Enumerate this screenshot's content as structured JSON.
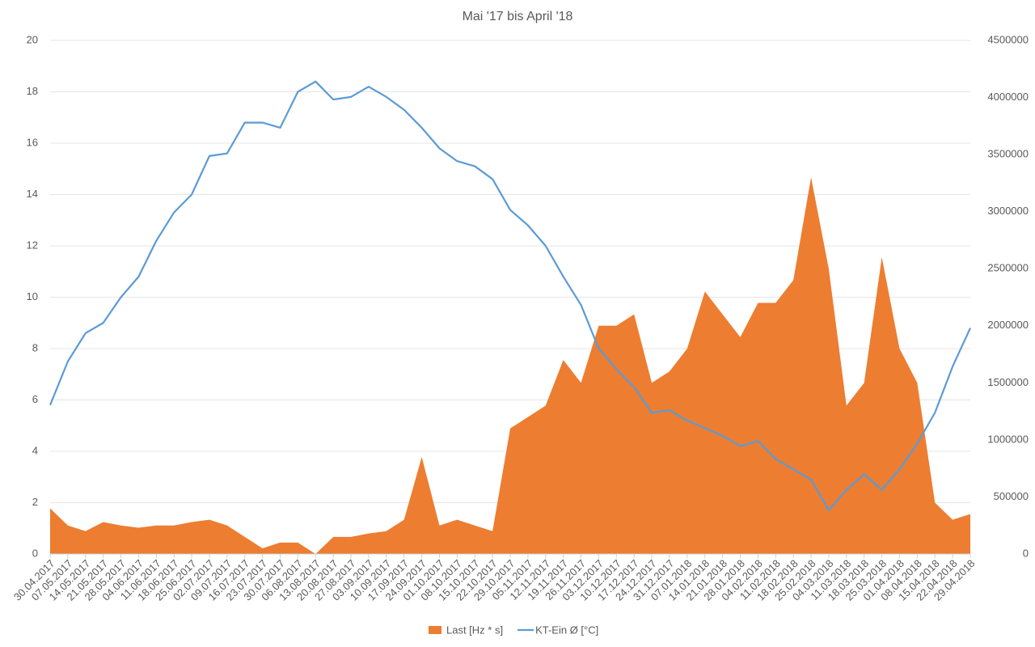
{
  "chart_data": {
    "type": "combo",
    "title": "Mai '17 bis April '18",
    "categories": [
      "30.04.2017",
      "07.05.2017",
      "14.05.2017",
      "21.05.2017",
      "28.05.2017",
      "04.06.2017",
      "11.06.2017",
      "18.06.2017",
      "25.06.2017",
      "02.07.2017",
      "09.07.2017",
      "16.07.2017",
      "23.07.2017",
      "30.07.2017",
      "06.08.2017",
      "13.08.2017",
      "20.08.2017",
      "27.08.2017",
      "03.09.2017",
      "10.09.2017",
      "17.09.2017",
      "24.09.2017",
      "01.10.2017",
      "08.10.2017",
      "15.10.2017",
      "22.10.2017",
      "29.10.2017",
      "05.11.2017",
      "12.11.2017",
      "19.11.2017",
      "26.11.2017",
      "03.12.2017",
      "10.12.2017",
      "17.12.2017",
      "24.12.2017",
      "31.12.2017",
      "07.01.2018",
      "14.01.2018",
      "21.01.2018",
      "28.01.2018",
      "04.02.2018",
      "11.02.2018",
      "18.02.2018",
      "25.02.2018",
      "04.03.2018",
      "11.03.2018",
      "18.03.2018",
      "25.03.2018",
      "01.04.2018",
      "08.04.2018",
      "15.04.2018",
      "22.04.2018",
      "29.04.2018"
    ],
    "series": [
      {
        "name": "Last [Hz * s]",
        "type": "area",
        "color": "#ed7d31",
        "axis": "y2",
        "values": [
          400000,
          250000,
          200000,
          280000,
          250000,
          230000,
          250000,
          250000,
          280000,
          300000,
          250000,
          150000,
          50000,
          100000,
          100000,
          0,
          150000,
          150000,
          180000,
          200000,
          300000,
          850000,
          250000,
          300000,
          250000,
          200000,
          1100000,
          1200000,
          1300000,
          1700000,
          1500000,
          2000000,
          2000000,
          2100000,
          1500000,
          1600000,
          1800000,
          2300000,
          2100000,
          1900000,
          2200000,
          2200000,
          2400000,
          3300000,
          2500000,
          1300000,
          1500000,
          2600000,
          1800000,
          1500000,
          450000,
          300000,
          350000
        ]
      },
      {
        "name": "KT-Ein Ø [°C]",
        "type": "line",
        "color": "#5b9bd5",
        "values": [
          5.8,
          7.5,
          8.6,
          9.0,
          10.0,
          10.8,
          12.2,
          13.3,
          14.0,
          15.5,
          15.6,
          16.8,
          16.8,
          16.6,
          18.0,
          18.4,
          17.7,
          17.8,
          18.2,
          17.8,
          17.3,
          16.6,
          15.8,
          15.3,
          15.1,
          14.6,
          13.4,
          12.8,
          12.0,
          10.8,
          9.7,
          8.0,
          7.2,
          6.5,
          5.5,
          5.6,
          5.2,
          4.9,
          4.6,
          4.2,
          4.4,
          3.7,
          3.3,
          2.9,
          1.7,
          2.5,
          3.1,
          2.5,
          3.3,
          4.3,
          5.5,
          7.3,
          8.8
        ]
      }
    ],
    "ylim": [
      0,
      20
    ],
    "yticks": [
      0,
      2,
      4,
      6,
      8,
      10,
      12,
      14,
      16,
      18,
      20
    ],
    "y2lim": [
      0,
      4500000
    ],
    "y2ticks": [
      0,
      500000,
      1000000,
      1500000,
      2000000,
      2500000,
      3000000,
      3500000,
      4000000,
      4500000
    ],
    "grid": true,
    "legend": "bottom"
  }
}
